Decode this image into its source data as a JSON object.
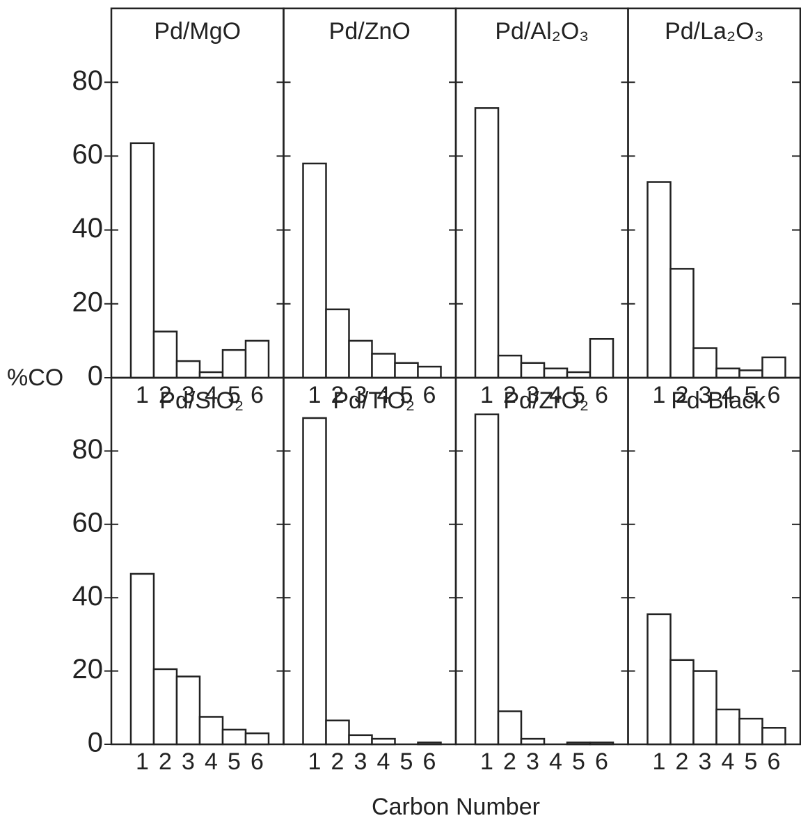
{
  "y_label": "%CO",
  "x_label": "Carbon Number",
  "chart_data": [
    {
      "type": "bar",
      "title": "Pd/MgO",
      "categories": [
        "1",
        "2",
        "3",
        "4",
        "5",
        "6"
      ],
      "values": [
        63.5,
        12.5,
        4.5,
        1.5,
        7.5,
        10
      ],
      "ylim": [
        0,
        100
      ],
      "yticks": [
        0,
        20,
        40,
        60,
        80
      ]
    },
    {
      "type": "bar",
      "title": "Pd/ZnO",
      "categories": [
        "1",
        "2",
        "3",
        "4",
        "5",
        "6"
      ],
      "values": [
        58,
        18.5,
        10,
        6.5,
        4,
        3
      ],
      "ylim": [
        0,
        100
      ],
      "yticks": [
        0,
        20,
        40,
        60,
        80
      ]
    },
    {
      "type": "bar",
      "title": "Pd/Al₂O₃",
      "categories": [
        "1",
        "2",
        "3",
        "4",
        "5",
        "6"
      ],
      "values": [
        73,
        6,
        4,
        2.5,
        1.5,
        10.5
      ],
      "ylim": [
        0,
        100
      ],
      "yticks": [
        0,
        20,
        40,
        60,
        80
      ]
    },
    {
      "type": "bar",
      "title": "Pd/La₂O₃",
      "categories": [
        "1",
        "2",
        "3",
        "4",
        "5",
        "6"
      ],
      "values": [
        53,
        29.5,
        8,
        2.5,
        2,
        5.5
      ],
      "ylim": [
        0,
        100
      ],
      "yticks": [
        0,
        20,
        40,
        60,
        80
      ]
    },
    {
      "type": "bar",
      "title": "Pd/SiO₂",
      "categories": [
        "1",
        "2",
        "3",
        "4",
        "5",
        "6"
      ],
      "values": [
        46.5,
        20.5,
        18.5,
        7.5,
        4,
        3
      ],
      "ylim": [
        0,
        100
      ],
      "yticks": [
        0,
        20,
        40,
        60,
        80
      ]
    },
    {
      "type": "bar",
      "title": "Pd/TiO₂",
      "categories": [
        "1",
        "2",
        "3",
        "4",
        "5",
        "6"
      ],
      "values": [
        89,
        6.5,
        2.5,
        1.5,
        0,
        0.5
      ],
      "ylim": [
        0,
        100
      ],
      "yticks": [
        0,
        20,
        40,
        60,
        80
      ]
    },
    {
      "type": "bar",
      "title": "Pd/ZrO₂",
      "categories": [
        "1",
        "2",
        "3",
        "4",
        "5",
        "6"
      ],
      "values": [
        90,
        9,
        1.5,
        0,
        0.5,
        0.5
      ],
      "ylim": [
        0,
        100
      ],
      "yticks": [
        0,
        20,
        40,
        60,
        80
      ]
    },
    {
      "type": "bar",
      "title": "Pd-Black",
      "categories": [
        "1",
        "2",
        "3",
        "4",
        "5",
        "6"
      ],
      "values": [
        35.5,
        23,
        20,
        9.5,
        7,
        4.5
      ],
      "ylim": [
        0,
        100
      ],
      "yticks": [
        0,
        20,
        40,
        60,
        80
      ]
    }
  ]
}
